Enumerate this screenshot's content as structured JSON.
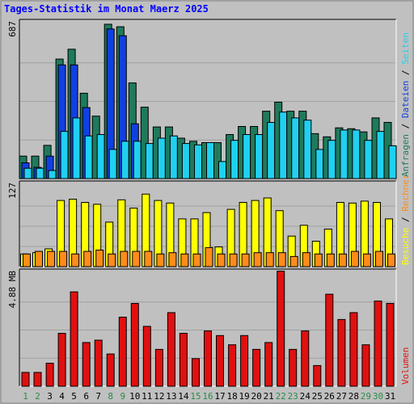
{
  "title": "Tages-Statistik im Monat Maerz 2025",
  "chart_data": {
    "type": "bar",
    "title": "Tages-Statistik im Monat Maerz 2025",
    "categories": [
      "1",
      "2",
      "3",
      "4",
      "5",
      "6",
      "7",
      "8",
      "9",
      "10",
      "11",
      "12",
      "13",
      "14",
      "15",
      "16",
      "17",
      "18",
      "19",
      "20",
      "21",
      "22",
      "23",
      "24",
      "25",
      "26",
      "27",
      "28",
      "29",
      "30",
      "31"
    ],
    "weekend_days": [
      "1",
      "2",
      "8",
      "9",
      "15",
      "16",
      "22",
      "23",
      "29",
      "30"
    ],
    "colors": {
      "anfragen": "#1f7a5c",
      "dateien": "#1040e0",
      "seiten": "#20d0f0",
      "besuche": "#ffff00",
      "rechner": "#ff8c1a",
      "volumen": "#e01010",
      "weekend": "#2a8a4a",
      "weekday": "#000000"
    },
    "panels": [
      {
        "id": "hits",
        "axis_label": "687",
        "ymax": 687,
        "legend": [
          {
            "text": "Anfragen",
            "color": "#1f7a5c"
          },
          {
            "text": "Dateien",
            "color": "#1040e0"
          },
          {
            "text": "Seiten",
            "color": "#20d0f0"
          }
        ],
        "series": [
          {
            "name": "Anfragen",
            "color": "#1f7a5c",
            "values": [
              100,
              100,
              148,
              532,
              576,
              380,
              278,
              687,
              676,
              426,
              318,
              230,
              230,
              180,
              166,
              160,
              160,
              196,
              232,
              232,
              300,
              340,
              300,
              300,
              200,
              186,
              226,
              222,
              208,
              270,
              250
            ]
          },
          {
            "name": "Dateien",
            "color": "#1040e0",
            "values": [
              70,
              50,
              100,
              506,
              506,
              316,
              0,
              666,
              636,
              244,
              0,
              0,
              0,
              0,
              0,
              0,
              0,
              0,
              0,
              0,
              0,
              0,
              0,
              0,
              0,
              0,
              0,
              0,
              0,
              0,
              0
            ]
          },
          {
            "name": "Seiten",
            "color": "#20d0f0",
            "values": [
              46,
              46,
              36,
              210,
              270,
              190,
              196,
              130,
              166,
              166,
              156,
              180,
              190,
              156,
              150,
              160,
              76,
              170,
              196,
              196,
              250,
              296,
              270,
              260,
              130,
              170,
              216,
              216,
              170,
              210,
              146
            ]
          }
        ]
      },
      {
        "id": "visits",
        "axis_label": "127",
        "ymax": 127,
        "legend": [
          {
            "text": "Besuche",
            "color": "#ffff00"
          },
          {
            "text": "Rechner",
            "color": "#ff8c1a"
          }
        ],
        "series": [
          {
            "name": "Besuche",
            "color": "#ffff00",
            "values": [
              20,
              22,
              28,
              104,
              106,
              101,
              98,
              70,
              105,
              92,
              114,
              104,
              100,
              75,
              75,
              85,
              31,
              90,
              101,
              104,
              108,
              88,
              48,
              65,
              40,
              59,
              101,
              100,
              103,
              101,
              75
            ]
          },
          {
            "name": "Rechner",
            "color": "#ff8c1a",
            "values": [
              20,
              24,
              24,
              24,
              20,
              24,
              26,
              20,
              24,
              24,
              24,
              20,
              22,
              20,
              20,
              30,
              20,
              20,
              20,
              22,
              22,
              22,
              16,
              22,
              20,
              20,
              20,
              24,
              20,
              24,
              20
            ]
          }
        ]
      },
      {
        "id": "volume",
        "axis_label": "4.88 MB",
        "ymax": 4.88,
        "legend": [
          {
            "text": "Volumen",
            "color": "#e01010"
          }
        ],
        "series": [
          {
            "name": "Volumen",
            "color": "#e01010",
            "values": [
              0.6,
              0.6,
              1.0,
              2.3,
              4.1,
              1.9,
              2.0,
              1.4,
              3.0,
              3.6,
              2.6,
              1.6,
              3.2,
              2.3,
              1.2,
              2.4,
              2.2,
              1.8,
              2.2,
              1.6,
              1.9,
              5.0,
              1.6,
              2.4,
              0.9,
              4.0,
              2.9,
              3.2,
              1.8,
              3.7,
              3.6
            ]
          }
        ]
      }
    ],
    "legend_separator": " / "
  }
}
